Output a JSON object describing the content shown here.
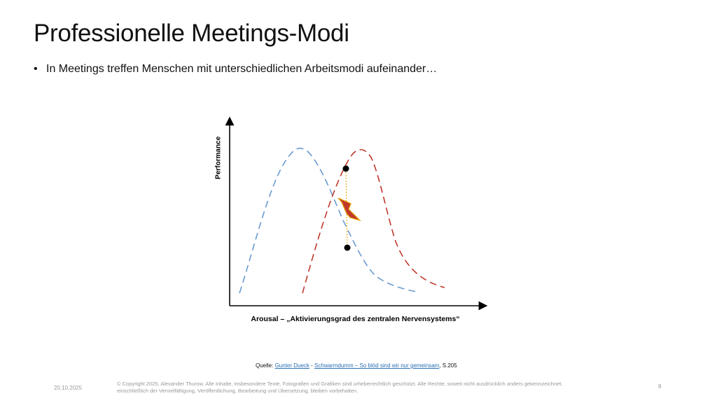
{
  "slide": {
    "title": "Professionelle Meetings-Modi",
    "bullet_symbol": "•",
    "bullet_text": "In Meetings treffen Menschen mit unterschiedlichen Arbeitsmodi aufeinander…"
  },
  "diagram": {
    "y_axis_label": "Performance",
    "x_axis_label": "Arousal – „Aktivierungsgrad des zentralen Nervensystems“",
    "curve_colors": {
      "blue": "#6b9bd1",
      "red": "#c0392b"
    },
    "lightning_colors": {
      "fill": "#c0392b",
      "stroke": "#e5a000"
    },
    "connector_color": "#e5a000",
    "icons": [
      "lightning-icon"
    ]
  },
  "source": {
    "prefix": "Quelle: ",
    "author": "Gunter Dueck",
    "sep1": " - ",
    "book": "Schwarmdumm – So blöd sind wir nur gemeinsam",
    "suffix": ", S.205"
  },
  "footer": {
    "date": "20.10.2025",
    "copyright": "© Copyright 2025, Alexander Thurow. Alle Inhalte, insbesondere Texte, Fotografien und Grafiken sind urheberrechtlich geschützt. Alle Rechte, soweit nicht ausdrücklich anders gekennzeichnet, einschließlich der Vervielfältigung, Veröffentlichung, Bearbeitung und Übersetzung, bleiben vorbehalten.",
    "page_number": "8"
  }
}
